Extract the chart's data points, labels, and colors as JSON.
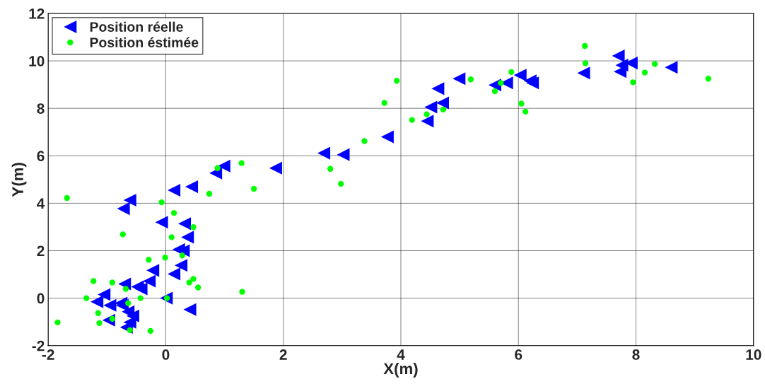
{
  "chart_data": {
    "type": "scatter",
    "xlabel": "X(m)",
    "ylabel": "Y(m)",
    "xlim": [
      -2,
      10
    ],
    "xticks": [
      -2,
      0,
      2,
      4,
      6,
      8,
      10
    ],
    "ylim": [
      -2,
      12
    ],
    "yticks": [
      -2,
      0,
      2,
      4,
      6,
      8,
      10,
      12
    ],
    "grid": true,
    "legend": "top left",
    "series": [
      {
        "name": "Position réelle",
        "color": "#0000ff",
        "marker": "triangle",
        "x": [
          -0.72,
          -0.61,
          0.14,
          0.44,
          0.85,
          0.99,
          -0.07,
          0.32,
          0.37,
          0.22,
          0.3,
          0.26,
          0.14,
          -0.22,
          -0.28,
          -0.42,
          -0.48,
          -0.7,
          -1.05,
          -1.17,
          -0.95,
          -0.76,
          -0.74,
          -0.64,
          -0.56,
          -0.97,
          -0.61,
          -0.67,
          0.01,
          0.41,
          1.87,
          2.69,
          3.02,
          3.77,
          4.45,
          4.51,
          4.71,
          4.63,
          4.99,
          5.6,
          5.8,
          6.03,
          6.2,
          6.24,
          7.11,
          7.7,
          7.76,
          7.73,
          7.92,
          8.6
        ],
        "values": [
          3.77,
          4.13,
          4.55,
          4.7,
          5.27,
          5.57,
          3.2,
          3.14,
          2.57,
          2.05,
          2.0,
          1.38,
          1.02,
          1.17,
          0.72,
          0.39,
          0.48,
          0.6,
          0.15,
          -0.15,
          -0.3,
          -0.21,
          -0.3,
          -0.57,
          -0.75,
          -0.93,
          -1.02,
          -1.23,
          0.0,
          -0.48,
          5.48,
          6.11,
          6.05,
          6.8,
          7.46,
          8.05,
          8.23,
          8.83,
          9.25,
          8.98,
          9.07,
          9.4,
          9.16,
          9.07,
          9.49,
          10.21,
          9.82,
          9.55,
          9.91,
          9.73
        ]
      },
      {
        "name": "Position éstimée",
        "color": "#00ff00",
        "marker": "circle",
        "x": [
          -1.68,
          -0.07,
          0.14,
          0.47,
          -0.73,
          0.1,
          -0.29,
          -0.01,
          0.28,
          -1.23,
          -0.91,
          0.47,
          0.4,
          0.55,
          -0.68,
          -1.35,
          -0.43,
          0.02,
          -0.64,
          -1.15,
          -0.91,
          -1.84,
          -1.13,
          -0.61,
          -0.26,
          0.88,
          0.74,
          1.29,
          1.5,
          2.8,
          2.98,
          3.38,
          4.19,
          1.3,
          3.93,
          3.72,
          4.44,
          4.72,
          5.19,
          5.6,
          5.7,
          5.88,
          6.05,
          6.12,
          7.13,
          7.14,
          7.95,
          8.15,
          8.32,
          9.23
        ],
        "values": [
          4.22,
          4.04,
          3.59,
          2.99,
          2.69,
          2.57,
          1.62,
          1.71,
          1.8,
          0.72,
          0.66,
          0.81,
          0.66,
          0.45,
          0.39,
          0.0,
          0.0,
          0.0,
          -0.21,
          -0.63,
          -0.87,
          -1.02,
          -1.05,
          -1.35,
          -1.38,
          5.48,
          4.4,
          5.69,
          4.61,
          5.45,
          4.82,
          6.62,
          7.51,
          0.27,
          9.16,
          8.23,
          7.75,
          7.95,
          9.22,
          8.72,
          9.07,
          9.53,
          8.2,
          7.86,
          10.63,
          9.9,
          9.1,
          9.51,
          9.87,
          9.25
        ]
      }
    ]
  }
}
